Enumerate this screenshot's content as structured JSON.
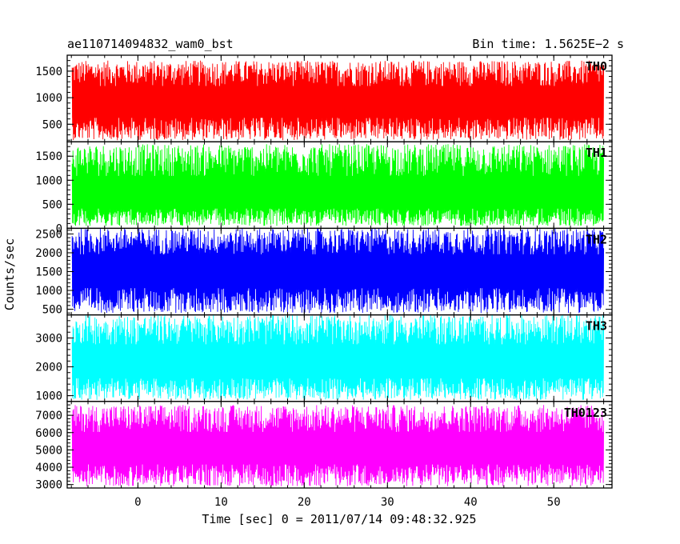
{
  "header": {
    "title": "ae110714094832_wam0_bst",
    "bin_time": "Bin time: 1.5625E−2 s"
  },
  "chart_data": {
    "type": "line",
    "title": "ae110714094832_wam0_bst",
    "xlabel": "Time [sec] 0 = 2011/07/14 09:48:32.925",
    "ylabel": "Counts/sec",
    "xlim": [
      -8.5,
      57
    ],
    "x_ticks": [
      0,
      10,
      20,
      30,
      40,
      50
    ],
    "x_data_range": [
      -7.9,
      56
    ],
    "panels": [
      {
        "name": "TH0",
        "color": "#ff0000",
        "ylim": [
          170,
          1800
        ],
        "y_ticks": [
          500,
          1000,
          1500
        ],
        "band": [
          200,
          1700
        ],
        "center": 900
      },
      {
        "name": "TH1",
        "color": "#00ff00",
        "ylim": [
          0,
          1800
        ],
        "y_ticks": [
          0,
          500,
          1000,
          1500
        ],
        "band": [
          50,
          1750
        ],
        "center": 650
      },
      {
        "name": "TH2",
        "color": "#0000ff",
        "ylim": [
          350,
          2650
        ],
        "y_ticks": [
          500,
          1000,
          1500,
          2000,
          2500
        ],
        "band": [
          400,
          2650
        ],
        "center": 1500
      },
      {
        "name": "TH3",
        "color": "#00ffff",
        "ylim": [
          800,
          3800
        ],
        "y_ticks": [
          1000,
          2000,
          3000
        ],
        "band": [
          850,
          3800
        ],
        "center": 2100
      },
      {
        "name": "TH0123",
        "color": "#ff00ff",
        "ylim": [
          2800,
          7800
        ],
        "y_ticks": [
          3000,
          4000,
          5000,
          6000,
          7000
        ],
        "band": [
          2900,
          7600
        ],
        "center": 5000
      }
    ]
  }
}
